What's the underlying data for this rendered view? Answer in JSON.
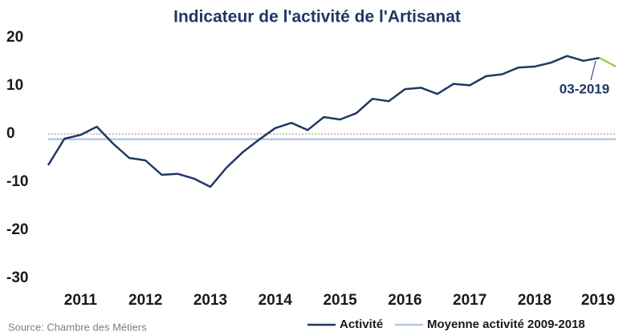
{
  "chart_data": {
    "type": "line",
    "title": "Indicateur de l'activité de l'Artisanat",
    "categories": [
      null,
      null,
      "2011",
      null,
      null,
      null,
      "2012",
      null,
      null,
      null,
      "2013",
      null,
      null,
      null,
      "2014",
      null,
      null,
      null,
      "2015",
      null,
      null,
      null,
      "2016",
      null,
      null,
      null,
      "2017",
      null,
      null,
      null,
      "2018",
      null,
      null,
      null,
      null,
      "2019"
    ],
    "series": [
      {
        "name": "Activité",
        "color": "#203864",
        "highlight_color": "#92d050",
        "values": [
          -6.5,
          -1,
          -0.2,
          1.5,
          -2,
          -5,
          -5.5,
          -8.5,
          -8.3,
          -9.3,
          -11,
          -7,
          -3.8,
          -1.2,
          1.2,
          2.3,
          0.8,
          3.5,
          3,
          4.3,
          7.3,
          6.8,
          9.3,
          9.6,
          8.3,
          10.4,
          10.1,
          12,
          12.4,
          13.8,
          14,
          14.8,
          16.2,
          15.2,
          15.8,
          14
        ]
      }
    ],
    "mean_line": {
      "name": "Moyenne activité 2009-2018",
      "color": "#b4c7e7",
      "value": -1.1
    },
    "annotation": "03-2019",
    "ylim": [
      -30,
      20
    ],
    "yticks": [
      -30,
      -20,
      -10,
      0,
      10,
      20
    ],
    "zero_line": true,
    "source": "Source: Chambre des Métiers"
  }
}
